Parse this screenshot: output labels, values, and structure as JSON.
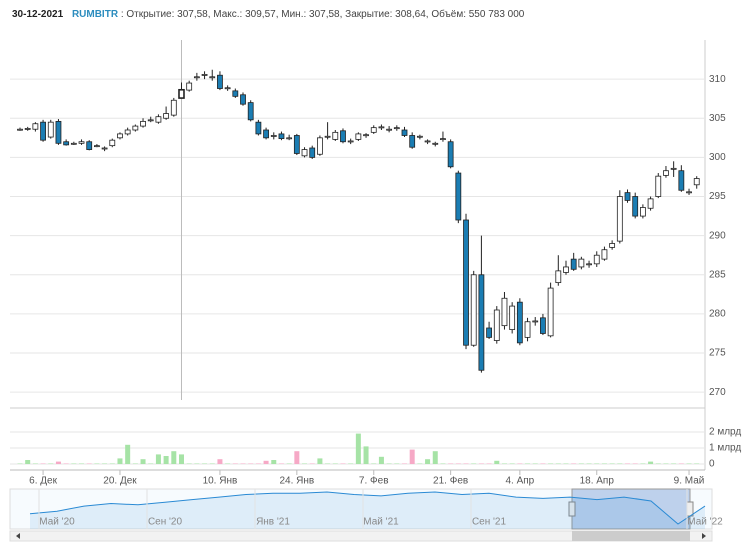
{
  "header": {
    "date": "30-12-2021",
    "ticker": "RUMBITR",
    "details": " : Открытие: 307,58, Макс.: 309,57, Мин.: 307,58, Закрытие: 308,64, Объём: 550 783 000"
  },
  "chart_data": {
    "type": "candlestick",
    "categories": [
      null,
      null,
      null,
      "6. Дек",
      null,
      null,
      null,
      null,
      null,
      null,
      null,
      null,
      null,
      "20. Дек",
      null,
      null,
      null,
      null,
      null,
      null,
      null,
      null,
      null,
      null,
      null,
      null,
      "10. Янв",
      null,
      null,
      null,
      null,
      null,
      null,
      null,
      null,
      null,
      "24. Янв",
      null,
      null,
      null,
      null,
      null,
      null,
      null,
      null,
      null,
      "7. Фев",
      null,
      null,
      null,
      null,
      null,
      null,
      null,
      null,
      null,
      "21. Фев",
      null,
      null,
      null,
      null,
      null,
      null,
      null,
      null,
      "4. Апр",
      null,
      null,
      null,
      null,
      null,
      null,
      null,
      null,
      null,
      "18. Апр",
      null,
      null,
      null,
      null,
      null,
      null,
      null,
      null,
      null,
      null,
      null,
      "9. Май",
      null
    ],
    "open": [
      303.6,
      303.6,
      303.6,
      304.5,
      302.6,
      304.6,
      302.0,
      301.8,
      301.8,
      302.0,
      301.5,
      301.2,
      301.5,
      302.5,
      303.0,
      303.5,
      304.0,
      304.8,
      304.5,
      305.0,
      305.4,
      307.58,
      308.6,
      310.3,
      310.5,
      310.2,
      310.5,
      308.8,
      308.5,
      308.0,
      307.0,
      304.5,
      303.5,
      302.7,
      303.0,
      302.5,
      302.8,
      300.2,
      301.2,
      300.4,
      302.6,
      302.3,
      303.4,
      302.0,
      302.3,
      302.8,
      303.2,
      303.8,
      303.5,
      303.7,
      303.5,
      302.8,
      302.6,
      302.0,
      301.7,
      302.3,
      302.0,
      298.0,
      292.0,
      276.0,
      285.0,
      278.2,
      276.6,
      278.5,
      278.0,
      281.5,
      277.0,
      279.0,
      279.5,
      277.2,
      284.0,
      285.3,
      287.0,
      286.0,
      286.3,
      286.4,
      287.0,
      288.5,
      289.3,
      295.5,
      295.0,
      292.5,
      293.5,
      295.0,
      297.7,
      298.5,
      298.3,
      295.6,
      296.5
    ],
    "high": [
      303.8,
      303.9,
      304.5,
      304.8,
      304.8,
      304.9,
      302.3,
      302.0,
      302.3,
      302.2,
      301.7,
      301.4,
      302.4,
      303.2,
      303.8,
      304.2,
      305.0,
      305.2,
      305.5,
      306.5,
      307.6,
      309.57,
      309.8,
      310.8,
      311.0,
      311.2,
      311.0,
      309.2,
      308.8,
      308.3,
      307.3,
      304.8,
      303.8,
      303.2,
      303.3,
      302.9,
      303.0,
      301.3,
      301.5,
      302.8,
      304.5,
      303.5,
      303.7,
      302.4,
      303.2,
      303.1,
      304.1,
      304.2,
      304.0,
      304.1,
      303.9,
      303.2,
      302.9,
      302.3,
      302.0,
      303.3,
      302.3,
      298.3,
      292.8,
      285.5,
      290.0,
      279.0,
      281.0,
      282.8,
      281.5,
      282.0,
      279.5,
      279.6,
      280.0,
      284.0,
      287.5,
      286.8,
      287.8,
      287.3,
      286.8,
      288.0,
      288.6,
      289.4,
      295.8,
      295.9,
      295.5,
      294.0,
      295.0,
      298.0,
      298.9,
      299.5,
      299.0,
      296.0,
      297.6
    ],
    "low": [
      303.4,
      303.4,
      303.3,
      302.0,
      302.4,
      301.6,
      301.5,
      301.6,
      301.6,
      300.9,
      301.3,
      300.8,
      301.3,
      302.3,
      302.8,
      303.3,
      303.8,
      304.5,
      304.3,
      304.8,
      305.2,
      307.58,
      308.4,
      309.8,
      310.0,
      309.8,
      308.6,
      308.5,
      307.6,
      306.6,
      304.6,
      302.8,
      302.3,
      302.3,
      302.2,
      302.2,
      300.3,
      300.0,
      299.8,
      300.2,
      302.3,
      302.1,
      301.8,
      301.7,
      302.1,
      302.5,
      303.0,
      303.5,
      303.2,
      303.4,
      302.6,
      301.1,
      302.3,
      301.7,
      301.4,
      302.0,
      298.6,
      291.6,
      275.5,
      275.8,
      272.5,
      276.8,
      276.2,
      278.0,
      277.5,
      276.0,
      276.5,
      278.5,
      277.3,
      277.0,
      283.6,
      285.0,
      285.5,
      285.7,
      285.9,
      286.0,
      286.8,
      288.2,
      289.0,
      294.2,
      292.2,
      292.2,
      293.2,
      294.8,
      297.4,
      297.5,
      295.6,
      295.2,
      296.0
    ],
    "close": [
      303.6,
      303.7,
      304.3,
      302.2,
      304.5,
      301.8,
      301.6,
      301.8,
      302.0,
      301.0,
      301.5,
      301.2,
      302.2,
      303.0,
      303.5,
      304.0,
      304.6,
      304.8,
      305.2,
      305.6,
      307.3,
      308.64,
      309.5,
      310.3,
      310.6,
      310.3,
      308.8,
      308.9,
      307.8,
      306.8,
      304.8,
      303.0,
      302.5,
      302.8,
      302.4,
      302.5,
      300.5,
      301.0,
      300.0,
      302.5,
      302.7,
      303.2,
      302.0,
      302.1,
      303.0,
      302.9,
      303.8,
      303.9,
      303.6,
      303.8,
      302.8,
      301.3,
      302.7,
      302.1,
      301.8,
      302.4,
      298.8,
      292.0,
      276.0,
      285.0,
      272.8,
      277.0,
      280.5,
      282.0,
      281.0,
      276.3,
      279.0,
      279.1,
      277.5,
      283.3,
      285.5,
      286.0,
      285.7,
      287.0,
      286.4,
      287.5,
      288.2,
      289.0,
      295.0,
      294.5,
      292.5,
      293.6,
      294.7,
      297.6,
      298.3,
      298.6,
      295.8,
      295.6,
      297.3
    ],
    "volume": [
      0.03,
      0.25,
      0.03,
      0.03,
      0.03,
      0.15,
      0.03,
      0.03,
      0.03,
      0.03,
      0.03,
      0.03,
      0.03,
      0.35,
      1.2,
      0.03,
      0.3,
      0.03,
      0.6,
      0.5,
      0.8,
      0.6,
      0.03,
      0.03,
      0.03,
      0.03,
      0.3,
      0.03,
      0.03,
      0.03,
      0.03,
      0.03,
      0.2,
      0.25,
      0.03,
      0.03,
      0.8,
      0.03,
      0.03,
      0.35,
      0.03,
      0.03,
      0.03,
      0.03,
      1.9,
      1.1,
      0.03,
      0.45,
      0.03,
      0.03,
      0.03,
      0.9,
      0.03,
      0.3,
      0.8,
      0.03,
      0.03,
      0.03,
      0.03,
      0.03,
      0.03,
      0.03,
      0.2,
      0.03,
      0.03,
      0.03,
      0.03,
      0.03,
      0.03,
      0.03,
      0.03,
      0.03,
      0.03,
      0.03,
      0.03,
      0.03,
      0.03,
      0.03,
      0.03,
      0.03,
      0.03,
      0.03,
      0.15,
      0.03,
      0.03,
      0.03,
      0.03,
      0.03,
      0.03
    ],
    "up_color": "#ffffff",
    "down_color": "#1b7db3",
    "volume_up_color": "#a6e3a6",
    "volume_down_color": "#f6a9c6",
    "ylim": [
      269,
      315
    ],
    "yticks": [
      270,
      275,
      280,
      285,
      290,
      295,
      300,
      305,
      310
    ],
    "grid": true,
    "volume_ylim": [
      0,
      3
    ],
    "volume_yticks": [
      0,
      {
        "value": 1,
        "label": "1 млрд"
      },
      {
        "value": 2,
        "label": "2 млрд"
      }
    ],
    "navigator": {
      "categories": [
        null,
        "Май '20",
        null,
        null,
        null,
        "Сен '20",
        null,
        null,
        null,
        "Янв '21",
        null,
        null,
        null,
        "Май '21",
        null,
        null,
        null,
        "Сен '21",
        null,
        null,
        null,
        null,
        null,
        null,
        null,
        "Май '22"
      ],
      "values": [
        290,
        292,
        296,
        298,
        297,
        299,
        301,
        303,
        305,
        306,
        306,
        307,
        305,
        304,
        306,
        307,
        305,
        306,
        303,
        302,
        303,
        301,
        303,
        300,
        282,
        296
      ],
      "color": "#2a8ad4"
    }
  }
}
